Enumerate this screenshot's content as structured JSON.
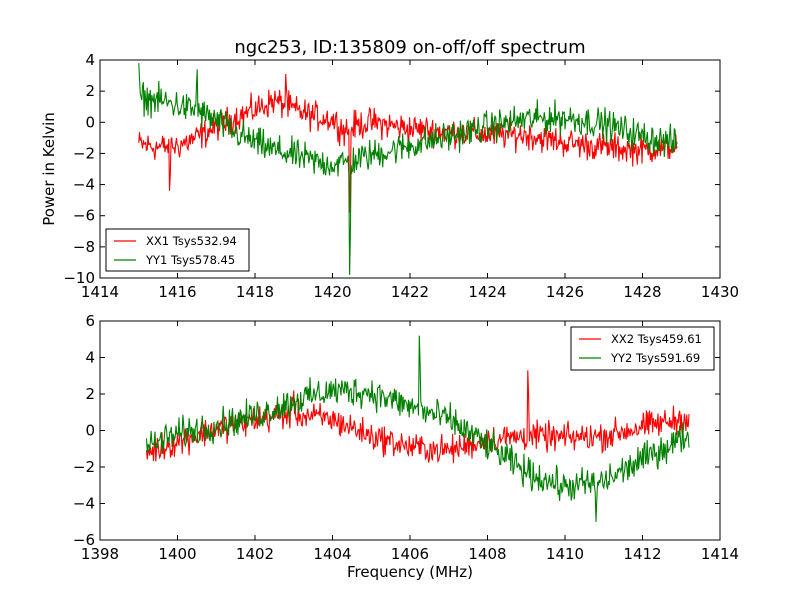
{
  "chart_data": [
    {
      "type": "line",
      "title": "ngc253, ID:135809 on-off/off spectrum",
      "xlabel": "",
      "ylabel": "Power in Kelvin",
      "xlim": [
        1414,
        1430
      ],
      "ylim": [
        -10,
        4
      ],
      "x_ticks": [
        "1414",
        "1416",
        "1418",
        "1420",
        "1422",
        "1424",
        "1426",
        "1428",
        "1430"
      ],
      "y_ticks": [
        "−10",
        "−8",
        "−6",
        "−4",
        "−2",
        "0",
        "2",
        "4"
      ],
      "grid": false,
      "legend_position": "lower-left",
      "x_range": [
        1415.0,
        1428.9
      ],
      "series": [
        {
          "name": "XX1 Tsys532.94",
          "color": "#ff0000",
          "shape": [
            [
              1415.0,
              -1.4
            ],
            [
              1415.5,
              -1.6
            ],
            [
              1416.0,
              -1.5
            ],
            [
              1416.5,
              -1.0
            ],
            [
              1417.0,
              -0.3
            ],
            [
              1417.5,
              0.3
            ],
            [
              1418.0,
              0.8
            ],
            [
              1418.5,
              1.4
            ],
            [
              1419.0,
              0.8
            ],
            [
              1419.5,
              0.4
            ],
            [
              1420.0,
              0.2
            ],
            [
              1420.3,
              -0.5
            ],
            [
              1420.6,
              -0.2
            ],
            [
              1421.0,
              0.0
            ],
            [
              1422.0,
              -0.4
            ],
            [
              1423.0,
              -0.6
            ],
            [
              1424.0,
              -0.8
            ],
            [
              1425.0,
              -0.8
            ],
            [
              1426.0,
              -1.3
            ],
            [
              1427.0,
              -1.6
            ],
            [
              1428.0,
              -1.8
            ],
            [
              1428.9,
              -1.5
            ]
          ],
          "noise": 0.65,
          "features": [
            {
              "x": 1420.45,
              "y": -5.8
            },
            {
              "x": 1415.8,
              "y": -4.4
            },
            {
              "x": 1418.8,
              "y": 3.1
            }
          ]
        },
        {
          "name": "YY1 Tsys578.45",
          "color": "#008000",
          "shape": [
            [
              1415.0,
              1.6
            ],
            [
              1415.5,
              1.4
            ],
            [
              1416.0,
              1.1
            ],
            [
              1416.5,
              0.7
            ],
            [
              1417.0,
              0.1
            ],
            [
              1417.5,
              -0.7
            ],
            [
              1418.0,
              -1.3
            ],
            [
              1418.5,
              -1.8
            ],
            [
              1419.0,
              -2.1
            ],
            [
              1419.5,
              -2.5
            ],
            [
              1420.0,
              -2.7
            ],
            [
              1420.5,
              -2.5
            ],
            [
              1421.0,
              -2.1
            ],
            [
              1422.0,
              -1.5
            ],
            [
              1423.0,
              -0.9
            ],
            [
              1424.0,
              -0.3
            ],
            [
              1425.0,
              0.2
            ],
            [
              1426.0,
              0.3
            ],
            [
              1427.0,
              -0.1
            ],
            [
              1428.0,
              -0.9
            ],
            [
              1428.9,
              -1.4
            ]
          ],
          "noise": 0.7,
          "features": [
            {
              "x": 1420.45,
              "y": -9.8
            },
            {
              "x": 1415.0,
              "y": 3.8
            },
            {
              "x": 1416.5,
              "y": 3.4
            }
          ]
        }
      ]
    },
    {
      "type": "line",
      "title": "",
      "xlabel": "Frequency (MHz)",
      "ylabel": "",
      "xlim": [
        1398,
        1414
      ],
      "ylim": [
        -6,
        6
      ],
      "x_ticks": [
        "1398",
        "1400",
        "1402",
        "1404",
        "1406",
        "1408",
        "1410",
        "1412",
        "1414"
      ],
      "y_ticks": [
        "−6",
        "−4",
        "−2",
        "0",
        "2",
        "4",
        "6"
      ],
      "grid": false,
      "legend_position": "upper-right",
      "x_range": [
        1399.2,
        1413.2
      ],
      "series": [
        {
          "name": "XX2 Tsys459.61",
          "color": "#ff0000",
          "shape": [
            [
              1399.2,
              -1.2
            ],
            [
              1400.0,
              -0.6
            ],
            [
              1401.0,
              0.1
            ],
            [
              1402.0,
              0.6
            ],
            [
              1403.0,
              0.9
            ],
            [
              1404.0,
              0.6
            ],
            [
              1405.0,
              -0.3
            ],
            [
              1406.0,
              -0.9
            ],
            [
              1407.0,
              -1.1
            ],
            [
              1408.0,
              -0.5
            ],
            [
              1409.0,
              -0.3
            ],
            [
              1410.0,
              -0.4
            ],
            [
              1411.0,
              -0.3
            ],
            [
              1412.0,
              0.2
            ],
            [
              1413.2,
              0.7
            ]
          ],
          "noise": 0.55,
          "features": [
            {
              "x": 1409.05,
              "y": 3.3
            },
            {
              "x": 1403.0,
              "y": 2.2
            }
          ]
        },
        {
          "name": "YY2 Tsys591.69",
          "color": "#008000",
          "shape": [
            [
              1399.2,
              -0.9
            ],
            [
              1400.0,
              -0.2
            ],
            [
              1401.0,
              0.3
            ],
            [
              1402.0,
              0.8
            ],
            [
              1403.0,
              1.6
            ],
            [
              1404.0,
              2.2
            ],
            [
              1405.0,
              2.1
            ],
            [
              1406.0,
              1.3
            ],
            [
              1407.0,
              0.6
            ],
            [
              1408.0,
              -0.8
            ],
            [
              1409.0,
              -2.3
            ],
            [
              1410.0,
              -3.1
            ],
            [
              1411.0,
              -2.8
            ],
            [
              1412.0,
              -1.6
            ],
            [
              1413.2,
              -0.2
            ]
          ],
          "noise": 0.6,
          "features": [
            {
              "x": 1406.25,
              "y": 5.2
            },
            {
              "x": 1410.8,
              "y": -5.0
            }
          ]
        }
      ]
    }
  ]
}
